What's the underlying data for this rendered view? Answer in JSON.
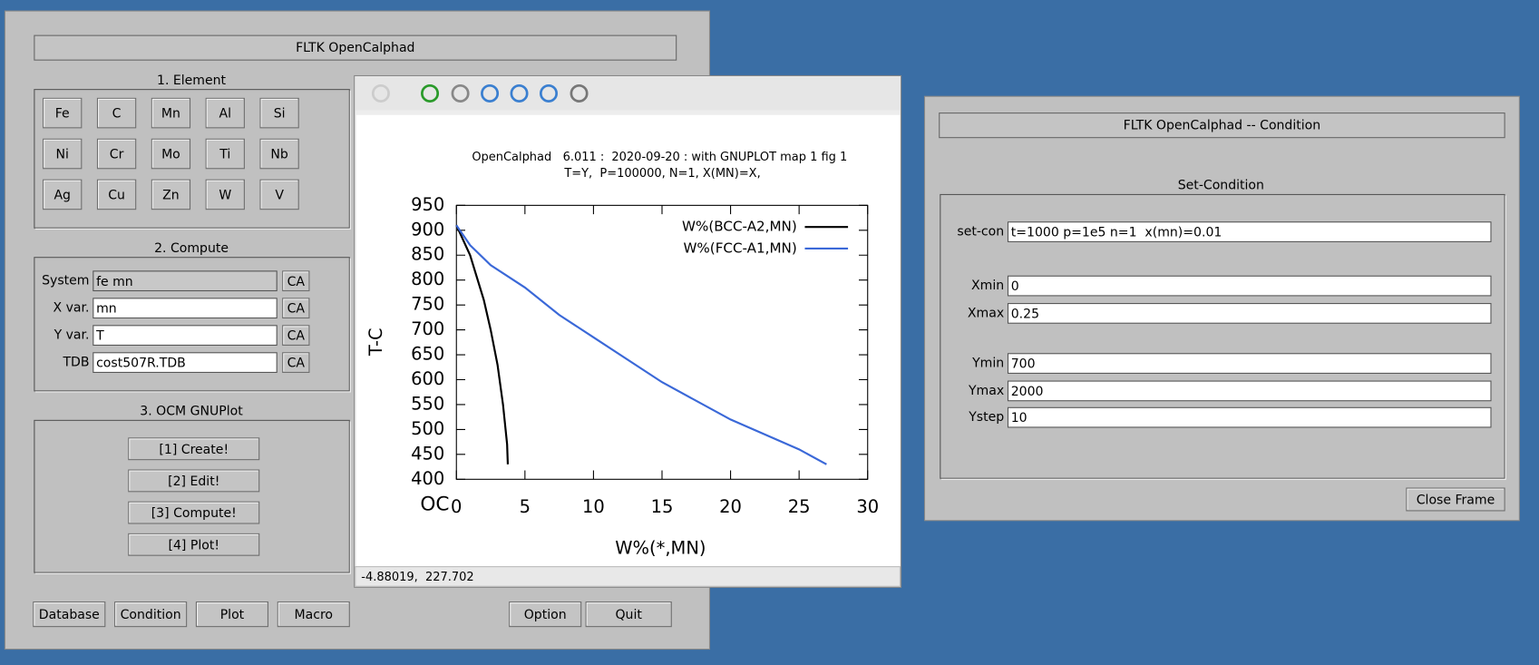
{
  "main_window": {
    "title": "FLTK OpenCalphad",
    "element_section": {
      "heading": "1. Element",
      "elements": [
        [
          "Fe",
          "C",
          "Mn",
          "Al",
          "Si"
        ],
        [
          "Ni",
          "Cr",
          "Mo",
          "Ti",
          "Nb"
        ],
        [
          "Ag",
          "Cu",
          "Zn",
          "W",
          "V"
        ]
      ]
    },
    "compute_section": {
      "heading": "2. Compute",
      "fields": [
        {
          "label": "System",
          "value": "fe mn",
          "button": "CA"
        },
        {
          "label": "X var.",
          "value": "mn",
          "button": "CA"
        },
        {
          "label": "Y var.",
          "value": "T",
          "button": "CA"
        },
        {
          "label": "TDB",
          "value": "cost507R.TDB",
          "button": "CA"
        }
      ]
    },
    "gnuplot_section": {
      "heading": "3. OCM GNUPlot",
      "buttons": [
        "[1] Create!",
        "[2] Edit!",
        "[3] Compute!",
        "[4] Plot!"
      ]
    },
    "bottom_buttons": [
      "Database",
      "Condition",
      "Plot",
      "Macro",
      "Option",
      "Quit"
    ]
  },
  "plot_window": {
    "status": "-4.88019,  227.702"
  },
  "chart_data": {
    "type": "line",
    "title": "OpenCalphad   6.011 :  2020-09-20 : with GNUPLOT map 1 fig 1",
    "subtitle": "T=Y,  P=100000, N=1, X(MN)=X,",
    "x_label": "W%(*,MN)",
    "y_label": "T-C",
    "corner_label": "OC",
    "xlim": [
      0,
      30
    ],
    "ylim": [
      400,
      950
    ],
    "xticks": [
      0,
      5,
      10,
      15,
      20,
      25,
      30
    ],
    "yticks": [
      400,
      450,
      500,
      550,
      600,
      650,
      700,
      750,
      800,
      850,
      900,
      950
    ],
    "legend": "top-right",
    "series": [
      {
        "name": "W%(BCC-A2,MN)",
        "color": "#000000",
        "x": [
          0,
          1,
          2,
          2.5,
          3,
          3.4,
          3.7,
          3.75
        ],
        "values": [
          910,
          850,
          760,
          700,
          630,
          550,
          470,
          430
        ]
      },
      {
        "name": "W%(FCC-A1,MN)",
        "color": "#3a68d8",
        "x": [
          0,
          1,
          2.5,
          5,
          7.5,
          10,
          15,
          20,
          25,
          27
        ],
        "values": [
          910,
          870,
          830,
          785,
          730,
          685,
          595,
          520,
          460,
          430
        ]
      }
    ]
  },
  "condition_window": {
    "title": "FLTK OpenCalphad -- Condition",
    "heading": "Set-Condition",
    "fields": [
      {
        "label": "set-con",
        "value": "t=1000 p=1e5 n=1  x(mn)=0.01"
      },
      {
        "label": "Xmin",
        "value": "0"
      },
      {
        "label": "Xmax",
        "value": "0.25"
      },
      {
        "label": "Ymin",
        "value": "700"
      },
      {
        "label": "Ymax",
        "value": "2000"
      },
      {
        "label": "Ystep",
        "value": "10"
      }
    ],
    "close_button": "Close Frame"
  }
}
